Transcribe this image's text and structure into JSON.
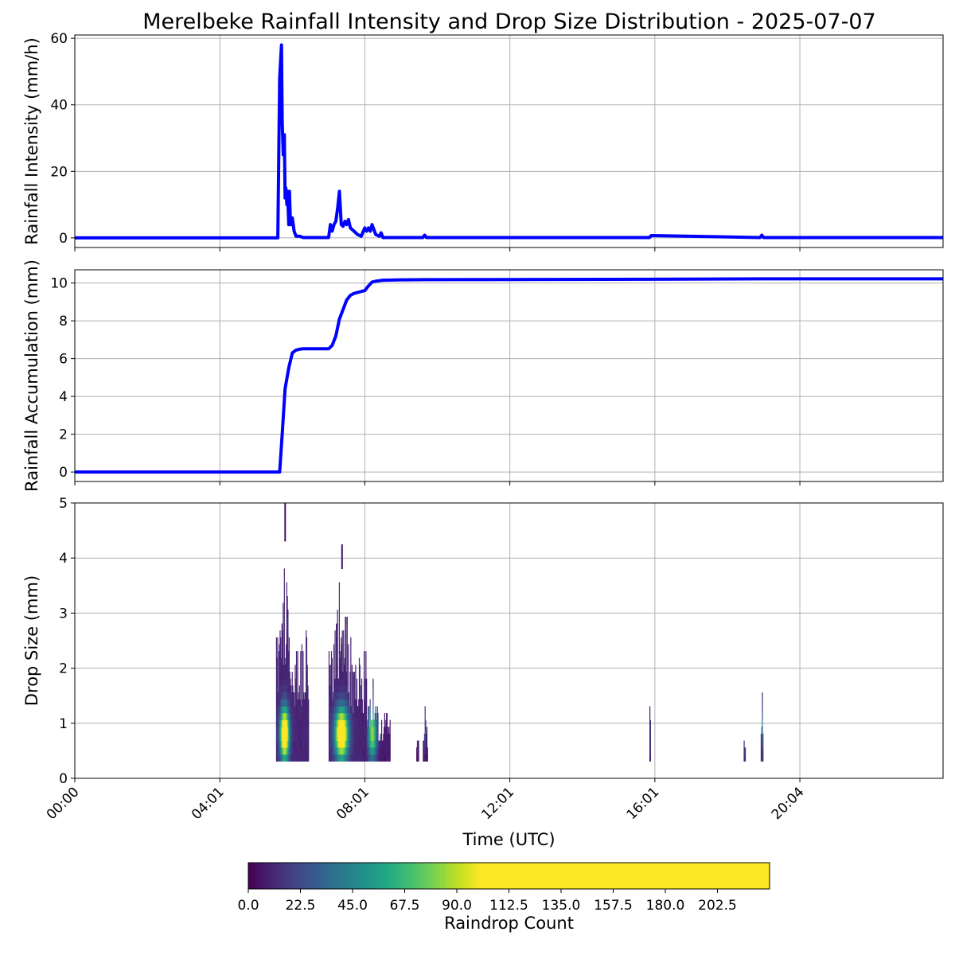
{
  "title": "Merelbeke Rainfall Intensity and Drop Size Distribution - 2025-07-07",
  "chart_data": [
    {
      "type": "line",
      "ylabel": "Rainfall Intensity (mm/h)",
      "xlim": [
        0,
        23.95
      ],
      "ylim": [
        -2.9,
        61
      ],
      "yticks": [
        0,
        20,
        40,
        60
      ],
      "grid": true,
      "color": "#0000ff",
      "series": [
        {
          "x": [
            0,
            5.6,
            5.65,
            5.7,
            5.72,
            5.75,
            5.78,
            5.8,
            5.82,
            5.85,
            5.87,
            5.9,
            5.92,
            5.95,
            5.97,
            6.0,
            6.05,
            6.1,
            6.2,
            6.3,
            6.5,
            7.0,
            7.05,
            7.1,
            7.15,
            7.2,
            7.25,
            7.3,
            7.35,
            7.4,
            7.45,
            7.5,
            7.55,
            7.6,
            7.7,
            7.8,
            7.9,
            8.0,
            8.05,
            8.1,
            8.15,
            8.2,
            8.3,
            8.4,
            8.45,
            8.5,
            9.6,
            9.65,
            9.7,
            15.85,
            15.9,
            18.9,
            18.95,
            19.0,
            23.95
          ],
          "y": [
            0,
            0,
            48,
            58,
            35,
            25,
            31,
            12,
            15,
            10,
            14,
            4,
            14,
            4,
            4,
            6,
            2,
            0.5,
            0.5,
            0.1,
            0.1,
            0.1,
            4,
            2,
            4,
            5,
            9,
            14,
            4,
            3.5,
            5,
            4,
            5.5,
            3,
            2,
            1,
            0.5,
            3,
            2,
            3,
            2,
            4,
            1,
            0.5,
            1.5,
            0.1,
            0.1,
            0.8,
            0.1,
            0.1,
            0.7,
            0.1,
            0.8,
            0.1,
            0.1
          ]
        }
      ]
    },
    {
      "type": "line",
      "ylabel": "Rainfall Accumulation (mm)",
      "xlim": [
        0,
        23.95
      ],
      "ylim": [
        -0.5,
        10.7
      ],
      "yticks": [
        0,
        2,
        4,
        6,
        8,
        10
      ],
      "grid": true,
      "color": "#0000ff",
      "series": [
        {
          "x": [
            0,
            5.65,
            5.72,
            5.8,
            5.9,
            6.0,
            6.1,
            6.2,
            6.3,
            6.5,
            7.0,
            7.1,
            7.2,
            7.3,
            7.4,
            7.5,
            7.6,
            7.7,
            7.8,
            8.0,
            8.1,
            8.2,
            8.3,
            8.5,
            9.0,
            9.7,
            15.9,
            18.95,
            23.95
          ],
          "y": [
            0,
            0,
            2.0,
            4.4,
            5.5,
            6.3,
            6.45,
            6.5,
            6.52,
            6.52,
            6.52,
            6.7,
            7.2,
            8.1,
            8.6,
            9.1,
            9.35,
            9.45,
            9.5,
            9.6,
            9.85,
            10.05,
            10.1,
            10.15,
            10.17,
            10.18,
            10.2,
            10.22,
            10.22
          ]
        }
      ]
    },
    {
      "type": "heatmap",
      "ylabel": "Drop Size (mm)",
      "xlabel": "Time (UTC)",
      "xlim": [
        0,
        23.95
      ],
      "ylim": [
        0,
        5
      ],
      "yticks": [
        0,
        1,
        2,
        3,
        4,
        5
      ],
      "xtick_labels": [
        "00:00",
        "04:01",
        "08:01",
        "12:01",
        "16:01",
        "20:04"
      ],
      "xtick_values": [
        0,
        4.0,
        8.0,
        12.0,
        16.0,
        20.0
      ],
      "grid": true,
      "colormap": "viridis",
      "colorbar": {
        "label": "Raindrop Count",
        "range": [
          0,
          225
        ],
        "saturation_value": 100,
        "ticks": [
          "0.0",
          "22.5",
          "45.0",
          "67.5",
          "90.0",
          "112.5",
          "135.0",
          "157.5",
          "180.0",
          "202.5"
        ]
      },
      "events": [
        {
          "start": 5.55,
          "end": 6.45,
          "peak": 5.78,
          "width": 0.12,
          "max_diameter": 4.3,
          "top_diameter": 5.0,
          "intensity": 1.0
        },
        {
          "start": 7.0,
          "end": 8.05,
          "peak": 7.35,
          "width": 0.18,
          "max_diameter": 3.8,
          "top_diameter": 4.25,
          "intensity": 0.95
        },
        {
          "start": 8.05,
          "end": 8.7,
          "peak": 8.2,
          "width": 0.12,
          "max_diameter": 1.9,
          "top_diameter": 1.9,
          "intensity": 0.6
        },
        {
          "start": 9.42,
          "end": 9.48,
          "peak": 9.45,
          "width": 0.02,
          "max_diameter": 0.8,
          "top_diameter": 0.8,
          "intensity": 0.1
        },
        {
          "start": 9.6,
          "end": 9.72,
          "peak": 9.65,
          "width": 0.03,
          "max_diameter": 1.35,
          "top_diameter": 1.35,
          "intensity": 0.15
        },
        {
          "start": 15.85,
          "end": 15.88,
          "peak": 15.86,
          "width": 0.02,
          "max_diameter": 1.4,
          "top_diameter": 1.4,
          "intensity": 0.1
        },
        {
          "start": 18.45,
          "end": 18.5,
          "peak": 18.47,
          "width": 0.02,
          "max_diameter": 1.05,
          "top_diameter": 1.05,
          "intensity": 0.2
        },
        {
          "start": 18.92,
          "end": 18.98,
          "peak": 18.95,
          "width": 0.02,
          "max_diameter": 1.6,
          "top_diameter": 1.6,
          "intensity": 0.3
        }
      ]
    }
  ]
}
